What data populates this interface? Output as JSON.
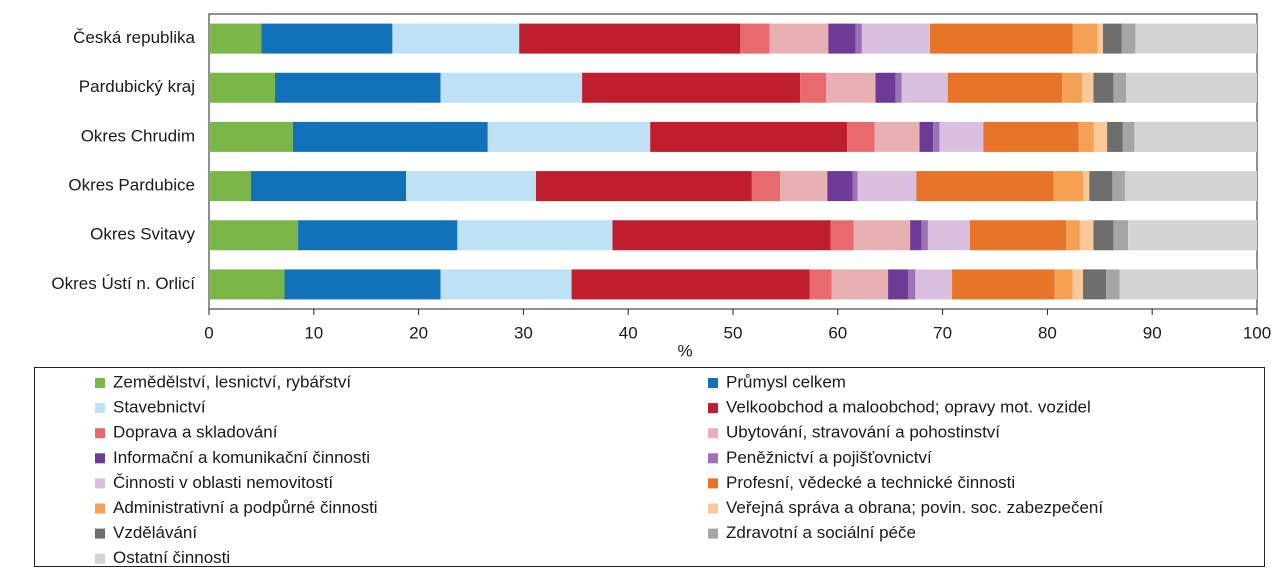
{
  "chart_data": {
    "type": "bar",
    "orientation": "horizontal",
    "stacked": true,
    "categories": [
      "Česká republika",
      "Pardubický kraj",
      "Okres Chrudim",
      "Okres Pardubice",
      "Okres Svitavy",
      "Okres Ústí n. Orlicí"
    ],
    "x_label": "%",
    "xlim": [
      0,
      100
    ],
    "xticks": [
      0,
      10,
      20,
      30,
      40,
      50,
      60,
      70,
      80,
      90,
      100
    ],
    "series": [
      {
        "name": "Zemědělství, lesnictví, rybářství",
        "color": "#7ab648",
        "values": [
          5.0,
          6.3,
          8.0,
          4.0,
          8.5,
          7.2
        ]
      },
      {
        "name": "Průmysl celkem",
        "color": "#1272b9",
        "values": [
          12.5,
          15.8,
          18.6,
          14.8,
          15.2,
          14.9
        ]
      },
      {
        "name": "Stavebnictví",
        "color": "#bfe1f6",
        "values": [
          12.1,
          13.5,
          15.5,
          12.4,
          14.8,
          12.5
        ]
      },
      {
        "name": "Velkoobchod a maloobchod; opravy mot. vozidel",
        "color": "#be1e2d",
        "values": [
          21.1,
          20.8,
          18.8,
          20.6,
          20.8,
          22.7
        ]
      },
      {
        "name": "Doprava a skladování",
        "color": "#e86a6e",
        "values": [
          2.8,
          2.5,
          2.6,
          2.7,
          2.2,
          2.1
        ]
      },
      {
        "name": "Ubytování, stravování a pohostinství",
        "color": "#e9b0b3",
        "values": [
          5.6,
          4.7,
          4.3,
          4.5,
          5.4,
          5.4
        ]
      },
      {
        "name": "Informační a komunikační činnosti",
        "color": "#6d3a96",
        "values": [
          2.6,
          1.9,
          1.3,
          2.4,
          1.1,
          1.9
        ]
      },
      {
        "name": "Peněžnictví a pojišťovnictví",
        "color": "#9b72b6",
        "values": [
          0.6,
          0.6,
          0.6,
          0.5,
          0.6,
          0.7
        ]
      },
      {
        "name": "Činnosti v oblasti nemovitostí",
        "color": "#d9bfe0",
        "values": [
          6.5,
          4.4,
          4.2,
          5.6,
          4.0,
          3.5
        ]
      },
      {
        "name": "Profesní, vědecké a technické činnosti",
        "color": "#e8742a",
        "values": [
          13.6,
          10.9,
          9.1,
          13.1,
          9.2,
          9.8
        ]
      },
      {
        "name": "Administrativní a podpůrné činnosti",
        "color": "#f4a154",
        "values": [
          2.4,
          1.9,
          1.4,
          2.8,
          1.3,
          1.7
        ]
      },
      {
        "name": "Veřejná správa a obrana; povin. soc. zabezpečení",
        "color": "#fbc89a",
        "values": [
          0.5,
          1.1,
          1.3,
          0.6,
          1.3,
          1.0
        ]
      },
      {
        "name": "Vzdělávání",
        "color": "#6d6d6d",
        "values": [
          1.8,
          1.9,
          1.5,
          2.2,
          1.9,
          2.2
        ]
      },
      {
        "name": "Zdravotní a sociální péče",
        "color": "#a5a5a5",
        "values": [
          1.3,
          1.2,
          1.1,
          1.2,
          1.4,
          1.3
        ]
      },
      {
        "name": "Ostatní činnosti",
        "color": "#d3d3d3",
        "values": [
          11.6,
          12.5,
          11.7,
          12.6,
          12.3,
          13.1
        ]
      }
    ]
  }
}
